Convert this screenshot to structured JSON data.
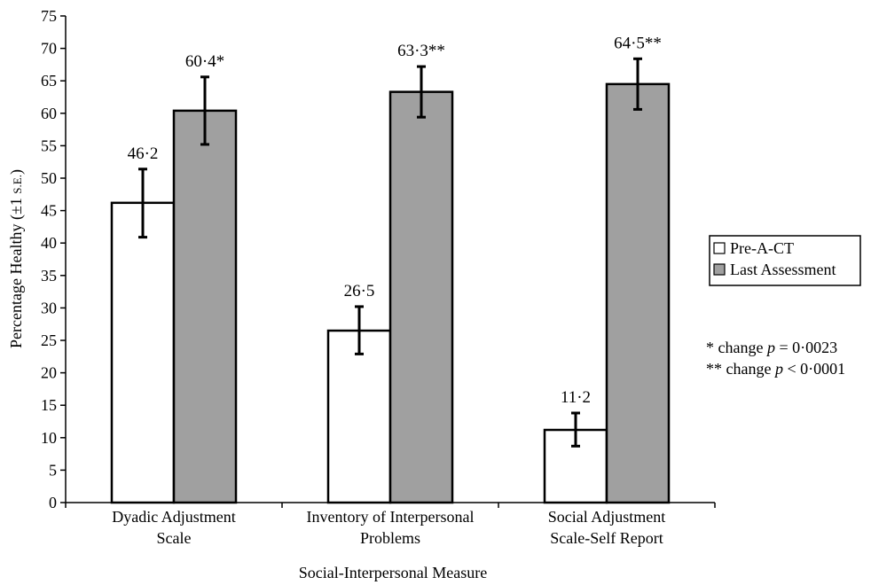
{
  "chart_data": {
    "type": "bar",
    "xlabel": "Social-Interpersonal Measure",
    "ylabel": "Percentage Healthy (±1 ",
    "ylabel_se": "S.E.",
    "ylabel_close": ")",
    "ylim": [
      0,
      75
    ],
    "yticks": [
      0,
      5,
      10,
      15,
      20,
      25,
      30,
      35,
      40,
      45,
      50,
      55,
      60,
      65,
      70,
      75
    ],
    "categories": [
      [
        "Dyadic Adjustment",
        "Scale"
      ],
      [
        "Inventory of Interpersonal",
        "Problems"
      ],
      [
        "Social Adjustment",
        "Scale-Self Report"
      ]
    ],
    "series": [
      {
        "name": "Pre-A-CT",
        "color": "#ffffff",
        "values": [
          46.2,
          26.5,
          11.2
        ],
        "error_low": [
          40.9,
          22.9,
          8.7
        ],
        "error_high": [
          51.4,
          30.2,
          13.8
        ],
        "labels": [
          "46·2",
          "26·5",
          "11·2"
        ]
      },
      {
        "name": "Last Assessment",
        "color": "#a0a0a0",
        "values": [
          60.4,
          63.3,
          64.5
        ],
        "error_low": [
          55.2,
          59.4,
          60.6
        ],
        "error_high": [
          65.6,
          67.2,
          68.4
        ],
        "labels": [
          "60·4*",
          "63·3**",
          "64·5**"
        ]
      }
    ],
    "legend_position": "right",
    "notes": [
      {
        "prefix": "* change ",
        "italic": "p",
        "suffix": " = 0·0023"
      },
      {
        "prefix": "** change ",
        "italic": "p",
        "suffix": " < 0·0001"
      }
    ]
  }
}
